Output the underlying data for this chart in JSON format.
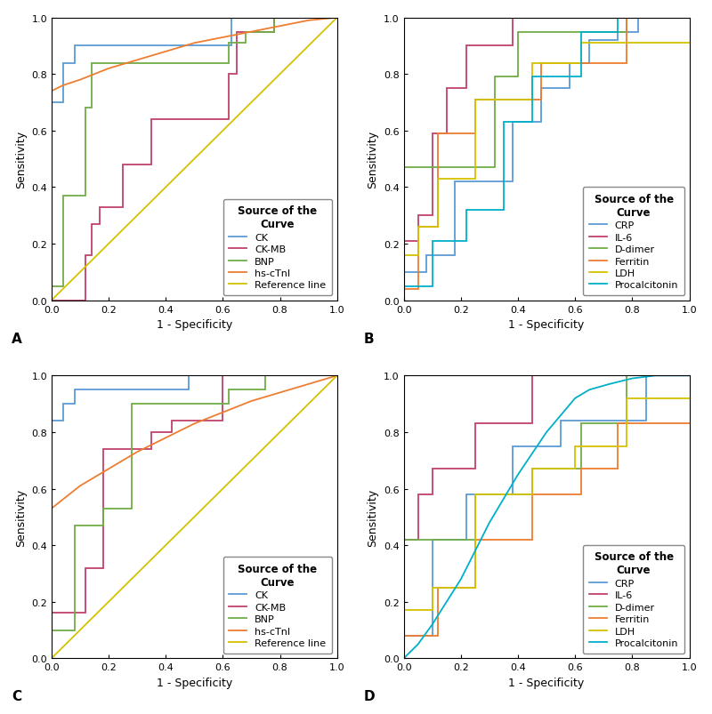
{
  "panels": [
    {
      "label": "A",
      "legend_title": "Source of the\nCurve",
      "curves": [
        {
          "name": "CK",
          "color": "#5B9BD5",
          "x": [
            0.0,
            0.0,
            0.04,
            0.04,
            0.08,
            0.08,
            0.63,
            0.63,
            1.0
          ],
          "y": [
            0.0,
            0.7,
            0.7,
            0.84,
            0.84,
            0.9,
            0.9,
            1.0,
            1.0
          ]
        },
        {
          "name": "CK-MB",
          "color": "#C0426B",
          "x": [
            0.0,
            0.0,
            0.12,
            0.12,
            0.14,
            0.14,
            0.17,
            0.17,
            0.25,
            0.25,
            0.35,
            0.35,
            0.62,
            0.62,
            0.65,
            0.65,
            0.78,
            0.78,
            1.0
          ],
          "y": [
            0.0,
            0.0,
            0.0,
            0.16,
            0.16,
            0.27,
            0.27,
            0.33,
            0.33,
            0.48,
            0.48,
            0.64,
            0.64,
            0.8,
            0.8,
            0.95,
            0.95,
            1.0,
            1.0
          ]
        },
        {
          "name": "BNP",
          "color": "#70AD47",
          "x": [
            0.0,
            0.0,
            0.04,
            0.04,
            0.12,
            0.12,
            0.14,
            0.14,
            0.62,
            0.62,
            0.68,
            0.68,
            0.78,
            0.78,
            1.0
          ],
          "y": [
            0.0,
            0.05,
            0.05,
            0.37,
            0.37,
            0.68,
            0.68,
            0.84,
            0.84,
            0.91,
            0.91,
            0.95,
            0.95,
            1.0,
            1.0
          ]
        },
        {
          "name": "hs-cTnI",
          "color": "#ED7D31",
          "x": [
            0.0,
            0.04,
            0.1,
            0.2,
            0.3,
            0.4,
            0.5,
            0.6,
            0.7,
            0.8,
            0.9,
            1.0
          ],
          "y": [
            0.74,
            0.76,
            0.78,
            0.82,
            0.85,
            0.88,
            0.91,
            0.93,
            0.95,
            0.97,
            0.99,
            1.0
          ]
        },
        {
          "name": "Reference line",
          "color": "#D4C200",
          "x": [
            0.0,
            1.0
          ],
          "y": [
            0.0,
            1.0
          ]
        }
      ]
    },
    {
      "label": "B",
      "legend_title": "Source of the\nCurve",
      "curves": [
        {
          "name": "CRP",
          "color": "#5B9BD5",
          "x": [
            0.0,
            0.0,
            0.08,
            0.08,
            0.18,
            0.18,
            0.38,
            0.38,
            0.48,
            0.48,
            0.58,
            0.58,
            0.65,
            0.65,
            0.75,
            0.75,
            0.82,
            0.82,
            1.0
          ],
          "y": [
            0.0,
            0.1,
            0.1,
            0.16,
            0.16,
            0.42,
            0.42,
            0.63,
            0.63,
            0.75,
            0.75,
            0.84,
            0.84,
            0.92,
            0.92,
            0.95,
            0.95,
            1.0,
            1.0
          ]
        },
        {
          "name": "IL-6",
          "color": "#C0426B",
          "x": [
            0.0,
            0.0,
            0.05,
            0.05,
            0.1,
            0.1,
            0.15,
            0.15,
            0.22,
            0.22,
            0.38,
            0.38,
            0.42,
            0.42,
            1.0
          ],
          "y": [
            0.0,
            0.21,
            0.21,
            0.3,
            0.3,
            0.59,
            0.59,
            0.75,
            0.75,
            0.9,
            0.9,
            1.0,
            1.0,
            1.0,
            1.0
          ]
        },
        {
          "name": "D-dimer",
          "color": "#70AD47",
          "x": [
            0.0,
            0.0,
            0.32,
            0.32,
            0.4,
            0.4,
            0.62,
            0.62,
            0.78,
            0.78,
            1.0
          ],
          "y": [
            0.0,
            0.47,
            0.47,
            0.79,
            0.79,
            0.95,
            0.95,
            0.95,
            0.95,
            1.0,
            1.0
          ]
        },
        {
          "name": "Ferritin",
          "color": "#ED7D31",
          "x": [
            0.0,
            0.0,
            0.05,
            0.05,
            0.12,
            0.12,
            0.25,
            0.25,
            0.48,
            0.48,
            0.62,
            0.62,
            0.78,
            0.78,
            1.0
          ],
          "y": [
            0.0,
            0.04,
            0.04,
            0.26,
            0.26,
            0.59,
            0.59,
            0.71,
            0.71,
            0.84,
            0.84,
            0.84,
            0.84,
            1.0,
            1.0
          ]
        },
        {
          "name": "LDH",
          "color": "#D4C200",
          "x": [
            0.0,
            0.0,
            0.05,
            0.05,
            0.12,
            0.12,
            0.25,
            0.25,
            0.45,
            0.45,
            0.62,
            0.62,
            0.75,
            0.75,
            1.0
          ],
          "y": [
            0.0,
            0.16,
            0.16,
            0.26,
            0.26,
            0.43,
            0.43,
            0.71,
            0.71,
            0.84,
            0.84,
            0.91,
            0.91,
            0.91,
            0.91
          ]
        },
        {
          "name": "Procalcitonin",
          "color": "#00B0C8",
          "x": [
            0.0,
            0.0,
            0.1,
            0.1,
            0.22,
            0.22,
            0.35,
            0.35,
            0.45,
            0.45,
            0.62,
            0.62,
            0.75,
            0.75,
            0.82,
            0.82,
            1.0
          ],
          "y": [
            0.0,
            0.05,
            0.05,
            0.21,
            0.21,
            0.32,
            0.32,
            0.63,
            0.63,
            0.79,
            0.79,
            0.95,
            0.95,
            1.0,
            1.0,
            1.0,
            1.0
          ]
        }
      ]
    },
    {
      "label": "C",
      "legend_title": "Source of the\nCurve",
      "curves": [
        {
          "name": "CK",
          "color": "#5B9BD5",
          "x": [
            0.0,
            0.0,
            0.04,
            0.04,
            0.08,
            0.08,
            0.3,
            0.3,
            0.48,
            0.48,
            0.62,
            0.62,
            1.0
          ],
          "y": [
            0.0,
            0.84,
            0.84,
            0.9,
            0.9,
            0.95,
            0.95,
            0.95,
            0.95,
            1.0,
            1.0,
            1.0,
            1.0
          ]
        },
        {
          "name": "CK-MB",
          "color": "#C0426B",
          "x": [
            0.0,
            0.0,
            0.12,
            0.12,
            0.18,
            0.18,
            0.35,
            0.35,
            0.42,
            0.42,
            0.6,
            0.6,
            0.65,
            0.65,
            1.0
          ],
          "y": [
            0.0,
            0.16,
            0.16,
            0.32,
            0.32,
            0.74,
            0.74,
            0.8,
            0.8,
            0.84,
            0.84,
            1.0,
            1.0,
            1.0,
            1.0
          ]
        },
        {
          "name": "BNP",
          "color": "#70AD47",
          "x": [
            0.0,
            0.0,
            0.08,
            0.08,
            0.18,
            0.18,
            0.28,
            0.28,
            0.62,
            0.62,
            0.75,
            0.75,
            1.0
          ],
          "y": [
            0.0,
            0.1,
            0.1,
            0.47,
            0.47,
            0.53,
            0.53,
            0.9,
            0.9,
            0.95,
            0.95,
            1.0,
            1.0
          ]
        },
        {
          "name": "hs-cTnI",
          "color": "#ED7D31",
          "x": [
            0.0,
            0.05,
            0.1,
            0.2,
            0.3,
            0.4,
            0.5,
            0.6,
            0.7,
            0.8,
            0.9,
            1.0
          ],
          "y": [
            0.53,
            0.57,
            0.61,
            0.67,
            0.73,
            0.78,
            0.83,
            0.87,
            0.91,
            0.94,
            0.97,
            1.0
          ]
        },
        {
          "name": "Reference line",
          "color": "#D4C200",
          "x": [
            0.0,
            1.0
          ],
          "y": [
            0.0,
            1.0
          ]
        }
      ]
    },
    {
      "label": "D",
      "legend_title": "Source of the\nCurve",
      "curves": [
        {
          "name": "CRP",
          "color": "#5B9BD5",
          "x": [
            0.0,
            0.0,
            0.1,
            0.1,
            0.22,
            0.22,
            0.38,
            0.38,
            0.55,
            0.55,
            0.75,
            0.75,
            0.85,
            0.85,
            1.0
          ],
          "y": [
            0.0,
            0.08,
            0.08,
            0.42,
            0.42,
            0.58,
            0.58,
            0.75,
            0.75,
            0.84,
            0.84,
            0.84,
            0.84,
            1.0,
            1.0
          ]
        },
        {
          "name": "IL-6",
          "color": "#C0426B",
          "x": [
            0.0,
            0.0,
            0.05,
            0.05,
            0.1,
            0.1,
            0.25,
            0.25,
            0.45,
            0.45,
            0.6,
            0.6,
            1.0
          ],
          "y": [
            0.0,
            0.42,
            0.42,
            0.58,
            0.58,
            0.67,
            0.67,
            0.83,
            0.83,
            1.0,
            1.0,
            1.0,
            1.0
          ]
        },
        {
          "name": "D-dimer",
          "color": "#70AD47",
          "x": [
            0.0,
            0.0,
            0.25,
            0.25,
            0.45,
            0.45,
            0.62,
            0.62,
            0.78,
            0.78,
            1.0
          ],
          "y": [
            0.0,
            0.42,
            0.42,
            0.58,
            0.58,
            0.67,
            0.67,
            0.83,
            0.83,
            1.0,
            1.0
          ]
        },
        {
          "name": "Ferritin",
          "color": "#ED7D31",
          "x": [
            0.0,
            0.0,
            0.12,
            0.12,
            0.25,
            0.25,
            0.45,
            0.45,
            0.62,
            0.62,
            0.75,
            0.75,
            1.0
          ],
          "y": [
            0.0,
            0.08,
            0.08,
            0.25,
            0.25,
            0.42,
            0.42,
            0.58,
            0.58,
            0.67,
            0.67,
            0.83,
            0.83
          ]
        },
        {
          "name": "LDH",
          "color": "#D4C200",
          "x": [
            0.0,
            0.0,
            0.1,
            0.1,
            0.25,
            0.25,
            0.45,
            0.45,
            0.6,
            0.6,
            0.78,
            0.78,
            1.0
          ],
          "y": [
            0.0,
            0.17,
            0.17,
            0.25,
            0.25,
            0.58,
            0.58,
            0.67,
            0.67,
            0.75,
            0.75,
            0.92,
            0.92
          ]
        },
        {
          "name": "Procalcitonin",
          "color": "#00B0C8",
          "x": [
            0.0,
            0.05,
            0.1,
            0.2,
            0.3,
            0.4,
            0.5,
            0.6,
            0.65,
            0.72,
            0.8,
            0.88,
            1.0
          ],
          "y": [
            0.0,
            0.05,
            0.12,
            0.28,
            0.48,
            0.65,
            0.8,
            0.92,
            0.95,
            0.97,
            0.99,
            1.0,
            1.0
          ]
        }
      ]
    }
  ],
  "xlabel": "1 - Specificity",
  "ylabel": "Sensitivity",
  "xlim": [
    0.0,
    1.0
  ],
  "ylim": [
    0.0,
    1.0
  ],
  "xticks": [
    0.0,
    0.2,
    0.4,
    0.6,
    0.8,
    1.0
  ],
  "yticks": [
    0.0,
    0.2,
    0.4,
    0.6,
    0.8,
    1.0
  ],
  "background_color": "#ffffff",
  "linewidth": 1.3
}
